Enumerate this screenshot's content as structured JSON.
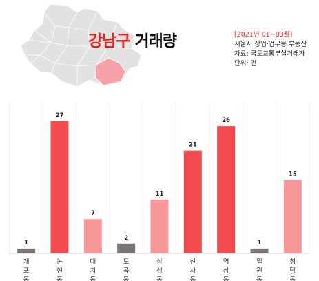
{
  "header": {
    "title_part1": "강남구",
    "title_part2": "거래량",
    "period": "[2021년 01~03월]",
    "subject": "서울시 상업·업무용 부동산",
    "source": "자료: 국토교통부실거래가",
    "unit": "단위: 건"
  },
  "colors": {
    "map_gray": "#e2e2e2",
    "map_highlight": "#f5a3a8",
    "title_red": "#e8211f",
    "bar_strong": "#f24b4e",
    "bar_light": "#f7979a",
    "bar_gray": "#7a7374"
  },
  "chart_data": {
    "type": "bar",
    "categories": [
      "개포동",
      "논현동",
      "대치동",
      "도곡동",
      "삼성동",
      "신사동",
      "역삼동",
      "일원동",
      "청담동"
    ],
    "values": [
      1,
      27,
      7,
      2,
      11,
      21,
      26,
      1,
      15
    ],
    "bar_colors": [
      "#7a7374",
      "#f24b4e",
      "#f7979a",
      "#7a7374",
      "#f7979a",
      "#f24b4e",
      "#f24b4e",
      "#7a7374",
      "#f7979a"
    ],
    "ylim": [
      0,
      29
    ],
    "grid": "vertical separators",
    "xlabel": "",
    "ylabel": ""
  }
}
